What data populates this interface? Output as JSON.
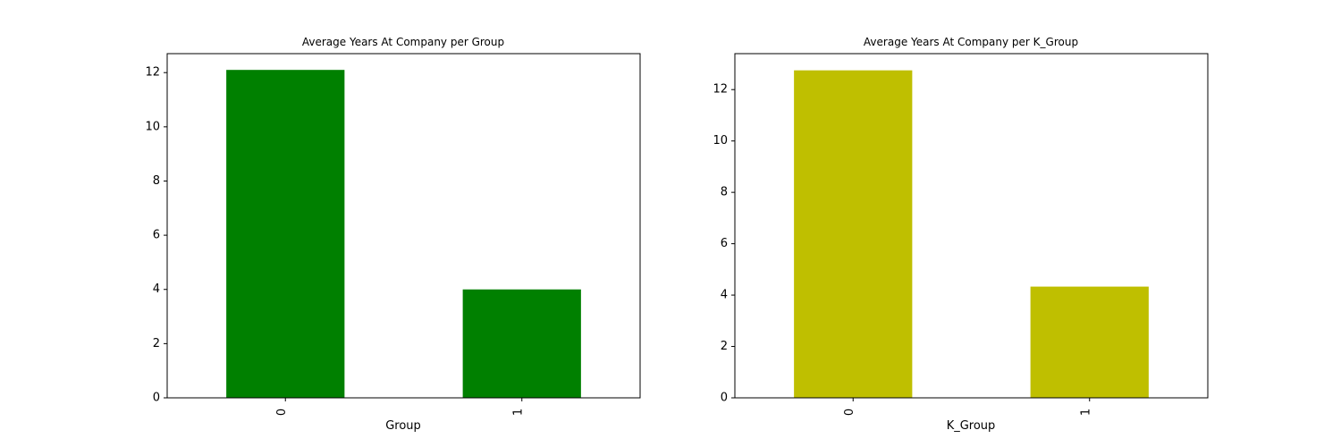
{
  "chart_data": [
    {
      "type": "bar",
      "title": "Average Years At Company per Group",
      "xlabel": "Group",
      "ylabel": "",
      "categories": [
        "0",
        "1"
      ],
      "values": [
        12.1,
        4.0
      ],
      "ylim": [
        0,
        12.7
      ],
      "yticks": [
        0,
        2,
        4,
        6,
        8,
        10,
        12
      ],
      "color": "#008000",
      "grid": false,
      "legend": "none"
    },
    {
      "type": "bar",
      "title": "Average Years At Company per K_Group",
      "xlabel": "K_Group",
      "ylabel": "",
      "categories": [
        "0",
        "1"
      ],
      "values": [
        12.75,
        4.33
      ],
      "ylim": [
        0,
        13.4
      ],
      "yticks": [
        0,
        2,
        4,
        6,
        8,
        10,
        12
      ],
      "color": "#bfbf00",
      "grid": false,
      "legend": "none"
    }
  ]
}
